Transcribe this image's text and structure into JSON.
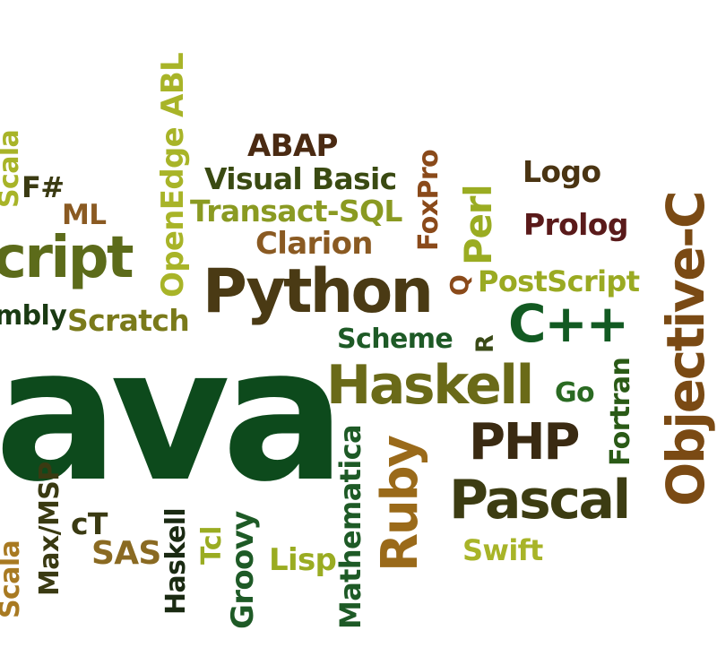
{
  "cloud": {
    "words": {
      "java": "ava",
      "script": "cript",
      "python": "Python",
      "objective_c": "Objective-C",
      "haskell_large": "Haskell",
      "php": "PHP",
      "pascal": "Pascal",
      "cpp": "C++",
      "ruby": "Ruby",
      "perl": "Perl",
      "abap": "ABAP",
      "visual_basic": "Visual Basic",
      "transact_sql": "Transact-SQL",
      "clarion": "Clarion",
      "openedge_abl": "OpenEdge ABL",
      "foxpro": "FoxPro",
      "logo": "Logo",
      "prolog": "Prolog",
      "postscript": "PostScript",
      "q": "Q",
      "r": "R",
      "scheme": "Scheme",
      "scratch": "Scratch",
      "assembly": "mbly",
      "fsharp": "F#",
      "ml": "ML",
      "scala_top": "Scala",
      "go": "Go",
      "fortran": "Fortran",
      "swift": "Swift",
      "max_msp": "Max/MSP",
      "ct": "cT",
      "sas": "SAS",
      "scala_bottom": "Scala",
      "haskell_small": "Haskell",
      "tcl": "Tcl",
      "groovy": "Groovy",
      "lisp": "Lisp",
      "mathematica": "Mathematica"
    },
    "palette": [
      "#0d4a1c",
      "#5c6b1a",
      "#4a3a14",
      "#7a4a14",
      "#9aac22",
      "#a8b428",
      "#3a3a12"
    ]
  }
}
